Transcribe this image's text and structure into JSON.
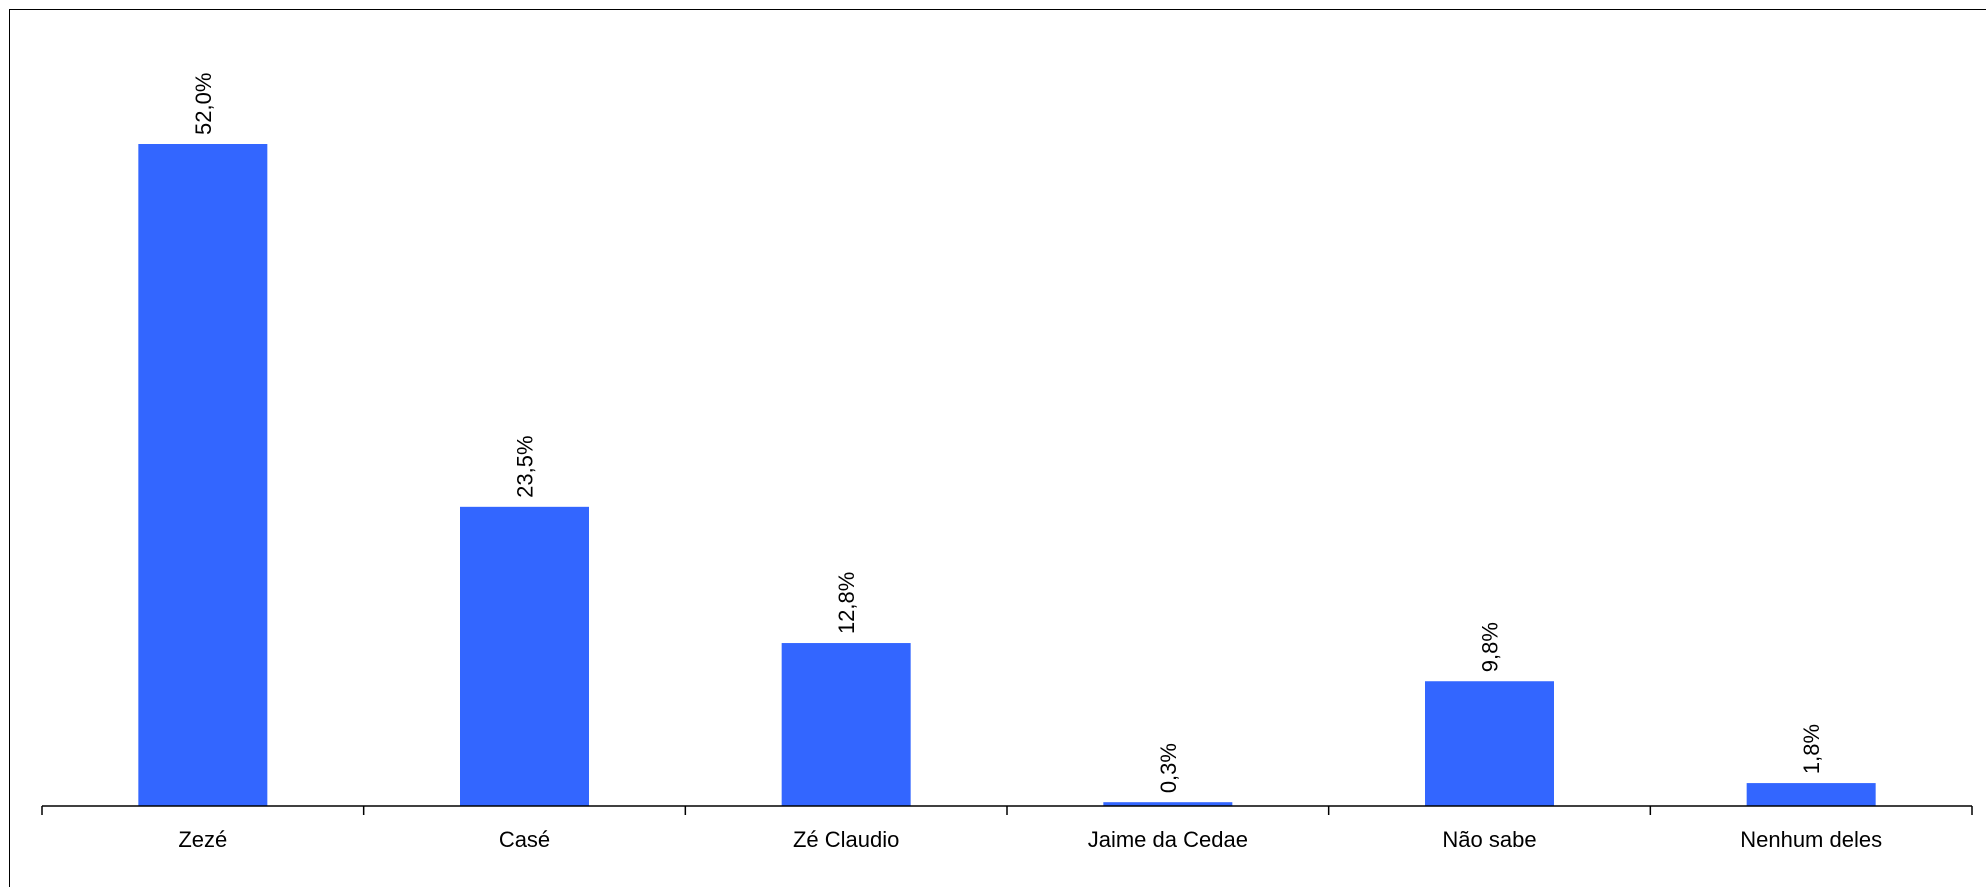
{
  "chart_data": {
    "type": "bar",
    "categories": [
      "Zezé",
      "Casé",
      "Zé Claudio",
      "Jaime da Cedae",
      "Não sabe",
      "Nenhum deles"
    ],
    "values": [
      52.0,
      23.5,
      12.8,
      0.3,
      9.8,
      1.8
    ],
    "value_labels": [
      "52,0%",
      "23,5%",
      "12,8%",
      "0,3%",
      "9,8%",
      "1,8%"
    ],
    "title": "",
    "xlabel": "",
    "ylabel": "",
    "ylim": [
      0,
      60
    ],
    "grid": false,
    "legend": "none",
    "bar_color": "#3366FF"
  }
}
